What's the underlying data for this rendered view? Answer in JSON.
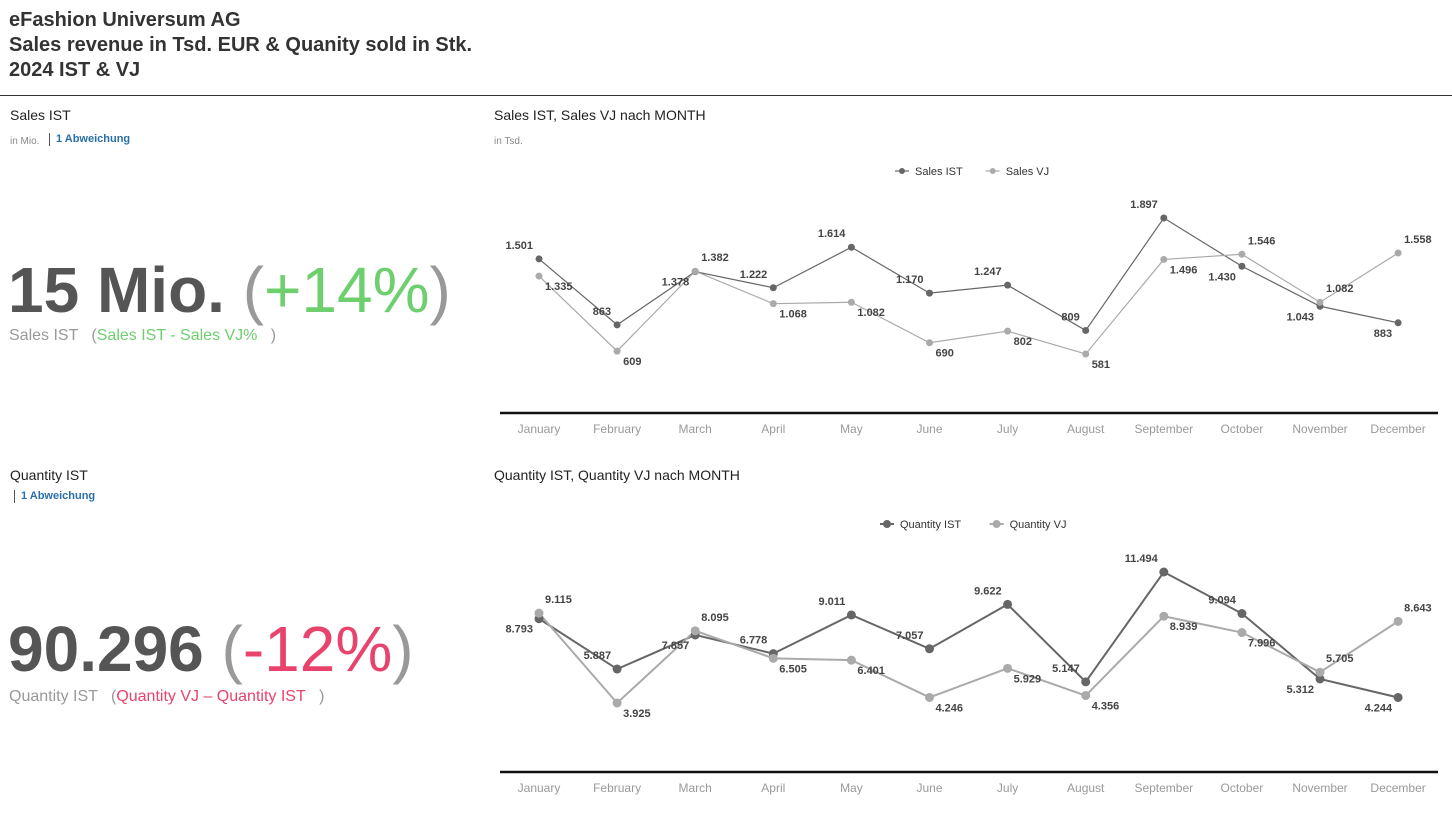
{
  "header": {
    "line1": "eFashion Universum AG",
    "line2": "Sales revenue in Tsd. EUR & Quanity sold in Stk.",
    "line3": "2024 IST & VJ"
  },
  "kpi_sales": {
    "title": "Sales IST",
    "unit": "in Mio.",
    "link": "1 Abweichung",
    "value": "15 Mio.",
    "paren_open": "(",
    "pct": "+14%",
    "paren_close": ")",
    "sub_label": "Sales IST",
    "sub_paren_open": "(",
    "sub_formula": "Sales IST - Sales VJ%",
    "sub_paren_close": ")",
    "color": "#6ecf6e"
  },
  "kpi_quantity": {
    "title": "Quantity IST",
    "link": "1 Abweichung",
    "value": "90.296",
    "paren_open": "(",
    "pct": "-12%",
    "paren_close": ")",
    "sub_label": "Quantity IST",
    "sub_paren_open": "(",
    "sub_formula": "Quantity VJ – Quantity IST",
    "sub_paren_close": ")",
    "color": "#e8436c"
  },
  "chart_data": [
    {
      "type": "line",
      "title": "Sales IST, Sales VJ nach MONTH",
      "unit": "in Tsd.",
      "categories": [
        "January",
        "February",
        "March",
        "April",
        "May",
        "June",
        "July",
        "August",
        "September",
        "October",
        "November",
        "December"
      ],
      "series": [
        {
          "name": "Sales IST",
          "color": "#666666",
          "values": [
            1501,
            863,
            1378,
            1222,
            1614,
            1170,
            1247,
            809,
            1897,
            1430,
            1043,
            883
          ],
          "labels": [
            "1.501",
            "863",
            "1.378",
            "1.222",
            "1.614",
            "1.170",
            "1.247",
            "809",
            "1.897",
            "1.430",
            "1.043",
            "883"
          ]
        },
        {
          "name": "Sales VJ",
          "color": "#aaaaaa",
          "values": [
            1335,
            609,
            1382,
            1068,
            1082,
            690,
            802,
            581,
            1496,
            1546,
            1082,
            1558
          ],
          "labels": [
            "1.335",
            "609",
            "1.382",
            "1.068",
            "1.082",
            "690",
            "802",
            "581",
            "1.496",
            "1.546",
            "1.082",
            "1.558"
          ]
        }
      ],
      "legend": "top-center"
    },
    {
      "type": "line",
      "title": "Quantity IST, Quantity VJ nach MONTH",
      "categories": [
        "January",
        "February",
        "March",
        "April",
        "May",
        "June",
        "July",
        "August",
        "September",
        "October",
        "November",
        "December"
      ],
      "series": [
        {
          "name": "Quantity IST",
          "color": "#666666",
          "values": [
            8793,
            5887,
            7857,
            6778,
            9011,
            7057,
            9622,
            5147,
            11494,
            9094,
            5312,
            4244
          ],
          "labels": [
            "8.793",
            "5.887",
            "7.857",
            "6.778",
            "9.011",
            "7.057",
            "9.622",
            "5.147",
            "11.494",
            "9.094",
            "5.312",
            "4.244"
          ]
        },
        {
          "name": "Quantity VJ",
          "color": "#aaaaaa",
          "values": [
            9115,
            3925,
            8095,
            6505,
            6401,
            4246,
            5929,
            4356,
            8939,
            7996,
            5705,
            8643
          ],
          "labels": [
            "9.115",
            "3.925",
            "8.095",
            "6.505",
            "6.401",
            "4.246",
            "5.929",
            "4.356",
            "8.939",
            "7.996",
            "5.705",
            "8.643"
          ]
        }
      ],
      "legend": "top-center"
    }
  ]
}
